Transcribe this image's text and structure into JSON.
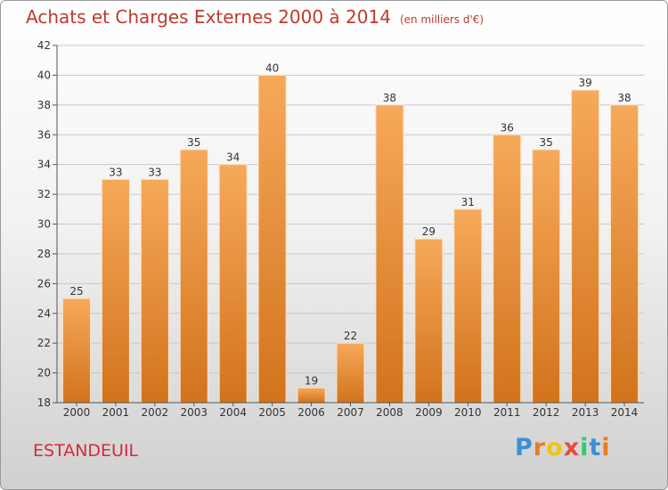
{
  "header": {
    "title": "Achats et Charges Externes 2000 à 2014",
    "subtitle": "(en milliers d'€)"
  },
  "footer": {
    "place": "ESTANDEUIL",
    "brand": "Proxiti",
    "brand_letters": [
      "P",
      "r",
      "o",
      "x",
      "i",
      "t",
      "i"
    ],
    "brand_colors": [
      "#3b8fd9",
      "#e67e22",
      "#f1c40f",
      "#e74c3c",
      "#2ecc71",
      "#3b8fd9",
      "#e67e22"
    ]
  },
  "colors": {
    "bar_light": "#f6a95a",
    "bar_dark": "#d2731c",
    "axis": "#555555",
    "grid": "#c8c8c8",
    "title": "#c0392b"
  },
  "chart_data": {
    "type": "bar",
    "categories": [
      "2000",
      "2001",
      "2002",
      "2003",
      "2004",
      "2005",
      "2006",
      "2007",
      "2008",
      "2009",
      "2010",
      "2011",
      "2012",
      "2013",
      "2014"
    ],
    "values": [
      25,
      33,
      33,
      35,
      34,
      40,
      19,
      22,
      38,
      29,
      31,
      36,
      35,
      39,
      38
    ],
    "ylim": [
      18,
      42
    ],
    "yticks": [
      18,
      20,
      22,
      24,
      26,
      28,
      30,
      32,
      34,
      36,
      38,
      40,
      42
    ],
    "grid": true,
    "xlabel": "",
    "ylabel": ""
  }
}
